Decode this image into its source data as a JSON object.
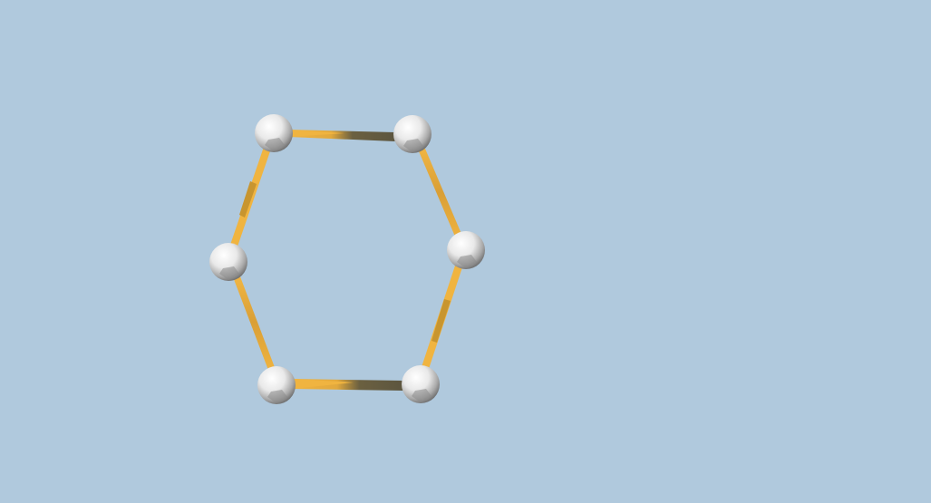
{
  "scene": {
    "background_color": "#b0c9dd",
    "bond_color": "#f0b440",
    "bond_shadow_color": "#6b6040",
    "atom_color": "#f2f2f2",
    "atom_shade_color": "#6e6e6e",
    "shape": "hexagon",
    "atom_count": 6,
    "bond_count": 6
  }
}
